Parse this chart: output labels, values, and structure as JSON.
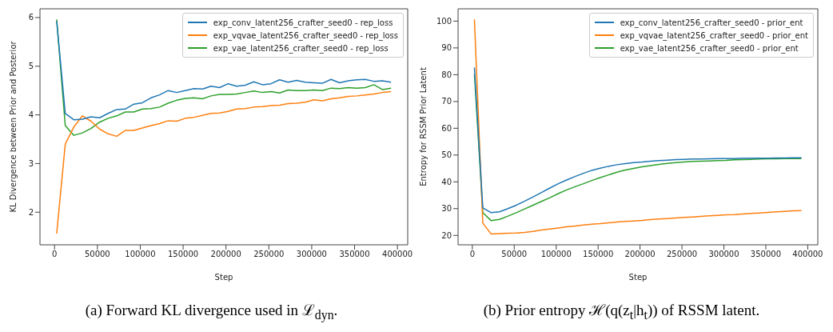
{
  "chart_data": [
    {
      "type": "line",
      "xlabel": "Step",
      "ylabel": "KL Divergence between Prior and Posterior",
      "legend": "top right",
      "annotations": [
        "(a) Forward KL divergence used in ℒ$_{dyn}$."
      ],
      "xlim": [
        -17000,
        412000
      ],
      "xticks": [
        0,
        50000,
        100000,
        150000,
        200000,
        250000,
        300000,
        350000,
        400000
      ],
      "ylim": [
        1.33,
        6.18
      ],
      "yticks": [
        2,
        3,
        4,
        5,
        6
      ],
      "x": [
        2500,
        12500,
        22500,
        32500,
        42500,
        52500,
        62500,
        72500,
        82500,
        92500,
        102500,
        112500,
        122500,
        132500,
        142500,
        152500,
        162500,
        172500,
        182500,
        192500,
        202500,
        212500,
        222500,
        232500,
        242500,
        252500,
        262500,
        272500,
        282500,
        292500,
        302500,
        312500,
        322500,
        332500,
        342500,
        352500,
        362500,
        372500,
        382500,
        392500
      ],
      "series": [
        {
          "name": "exp_conv_latent256_crafter_seed0 - rep_loss",
          "color": "#1f77b4",
          "values": [
            5.93,
            4.03,
            3.9,
            3.91,
            3.96,
            3.94,
            4.03,
            4.11,
            4.12,
            4.22,
            4.25,
            4.35,
            4.41,
            4.5,
            4.46,
            4.5,
            4.54,
            4.53,
            4.59,
            4.56,
            4.64,
            4.59,
            4.61,
            4.68,
            4.62,
            4.64,
            4.72,
            4.67,
            4.71,
            4.67,
            4.66,
            4.65,
            4.73,
            4.66,
            4.7,
            4.72,
            4.73,
            4.69,
            4.7,
            4.67
          ]
        },
        {
          "name": "exp_vqvae_latent256_crafter_seed0 - rep_loss",
          "color": "#ff7f0e",
          "values": [
            1.56,
            3.4,
            3.75,
            3.98,
            3.87,
            3.71,
            3.61,
            3.56,
            3.68,
            3.68,
            3.73,
            3.78,
            3.82,
            3.88,
            3.87,
            3.93,
            3.95,
            3.99,
            4.03,
            4.04,
            4.07,
            4.12,
            4.13,
            4.16,
            4.17,
            4.19,
            4.2,
            4.23,
            4.24,
            4.26,
            4.31,
            4.29,
            4.33,
            4.35,
            4.38,
            4.39,
            4.41,
            4.43,
            4.46,
            4.48
          ]
        },
        {
          "name": "exp_vae_latent256_crafter_seed0 - rep_loss",
          "color": "#2ca02c",
          "values": [
            5.96,
            3.78,
            3.58,
            3.63,
            3.72,
            3.85,
            3.93,
            3.98,
            4.06,
            4.06,
            4.12,
            4.13,
            4.16,
            4.24,
            4.3,
            4.34,
            4.35,
            4.33,
            4.39,
            4.42,
            4.42,
            4.43,
            4.46,
            4.49,
            4.46,
            4.48,
            4.45,
            4.51,
            4.5,
            4.5,
            4.51,
            4.5,
            4.55,
            4.54,
            4.56,
            4.55,
            4.56,
            4.62,
            4.52,
            4.55
          ]
        }
      ]
    },
    {
      "type": "line",
      "xlabel": "Step",
      "ylabel": "Entropy for RSSM Prior Latent",
      "legend": "top right",
      "annotations": [
        "(b) Prior entropy ℋ(q(z$_{t}$|h$_{t}$)) of RSSM latent."
      ],
      "xlim": [
        -17000,
        412000
      ],
      "xticks": [
        0,
        50000,
        100000,
        150000,
        200000,
        250000,
        300000,
        350000,
        400000
      ],
      "ylim": [
        16.5,
        104.6
      ],
      "yticks": [
        20,
        30,
        40,
        50,
        60,
        70,
        80,
        90,
        100
      ],
      "x": [
        2500,
        12500,
        22500,
        32500,
        42500,
        52500,
        62500,
        72500,
        82500,
        92500,
        102500,
        112500,
        122500,
        132500,
        142500,
        152500,
        162500,
        172500,
        182500,
        192500,
        202500,
        212500,
        222500,
        232500,
        242500,
        252500,
        262500,
        272500,
        282500,
        292500,
        302500,
        312500,
        322500,
        332500,
        342500,
        352500,
        362500,
        372500,
        382500,
        392500
      ],
      "series": [
        {
          "name": "exp_conv_latent256_crafter_seed0 - prior_ent",
          "color": "#1f77b4",
          "values": [
            82.7,
            30.3,
            28.5,
            28.8,
            30.0,
            31.3,
            32.8,
            34.4,
            36.0,
            37.7,
            39.3,
            40.7,
            42.0,
            43.2,
            44.3,
            45.1,
            45.8,
            46.4,
            46.8,
            47.2,
            47.4,
            47.7,
            47.9,
            48.1,
            48.3,
            48.4,
            48.5,
            48.5,
            48.6,
            48.7,
            48.7,
            48.7,
            48.8,
            48.8,
            48.8,
            48.8,
            48.9,
            48.9,
            49.0,
            49.0
          ]
        },
        {
          "name": "exp_vqvae_latent256_crafter_seed0 - prior_ent",
          "color": "#ff7f0e",
          "values": [
            100.6,
            24.6,
            20.5,
            20.7,
            20.8,
            20.9,
            21.1,
            21.5,
            22.0,
            22.4,
            22.8,
            23.2,
            23.5,
            23.9,
            24.2,
            24.4,
            24.7,
            25.0,
            25.2,
            25.4,
            25.6,
            25.9,
            26.1,
            26.3,
            26.5,
            26.7,
            26.9,
            27.1,
            27.3,
            27.5,
            27.7,
            27.8,
            28.0,
            28.2,
            28.4,
            28.6,
            28.8,
            29.0,
            29.2,
            29.3
          ]
        },
        {
          "name": "exp_vae_latent256_crafter_seed0 - prior_ent",
          "color": "#2ca02c",
          "values": [
            80.2,
            28.5,
            25.5,
            26.0,
            27.2,
            28.5,
            29.9,
            31.3,
            32.7,
            34.1,
            35.6,
            37.0,
            38.2,
            39.3,
            40.5,
            41.6,
            42.6,
            43.6,
            44.4,
            45.0,
            45.6,
            46.1,
            46.5,
            46.9,
            47.2,
            47.4,
            47.6,
            47.7,
            47.8,
            47.9,
            48.0,
            48.2,
            48.3,
            48.4,
            48.5,
            48.6,
            48.6,
            48.7,
            48.7,
            48.7
          ]
        }
      ]
    }
  ]
}
